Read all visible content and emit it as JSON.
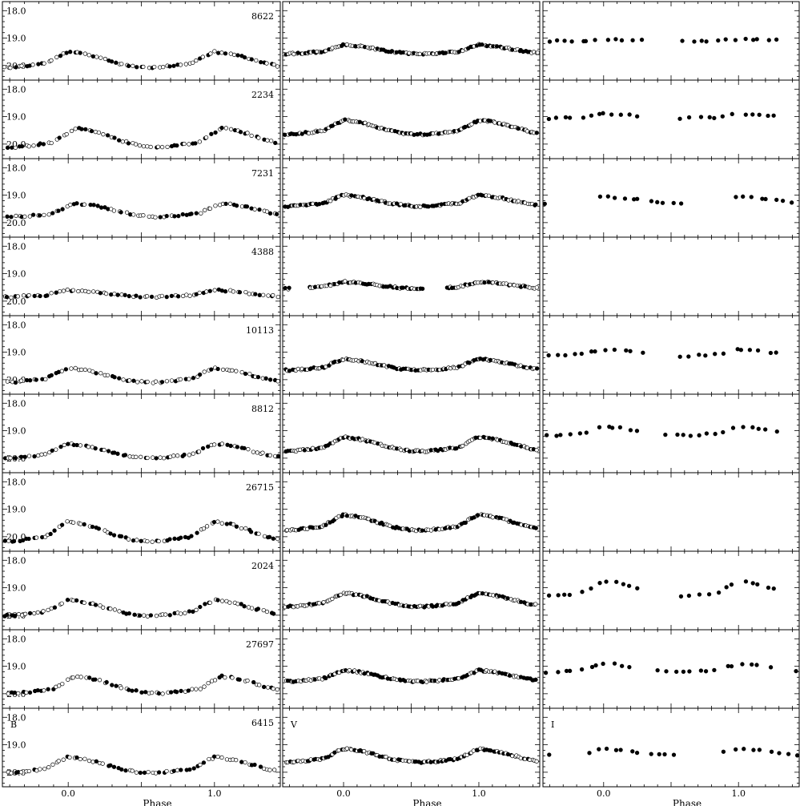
{
  "chart_data": {
    "type": "scatter",
    "layout": "grid",
    "rows": [
      "8622",
      "2234",
      "7231",
      "4388",
      "10113",
      "8812",
      "26715",
      "2024",
      "27697",
      "6415"
    ],
    "columns": [
      "B",
      "V",
      "I"
    ],
    "xlabel": "Phase",
    "xlim": [
      -0.45,
      1.45
    ],
    "ylim": [
      20.5,
      17.7
    ],
    "yticks": [
      "18.0",
      "19.0",
      "20.0"
    ],
    "xticks": [
      "0.0",
      "1.0"
    ],
    "point_styles": {
      "filled": "#000000",
      "open_fill": "#ffffff",
      "stroke": "#000000"
    },
    "panels": [
      {
        "star": "8622",
        "B": {
          "mean": 19.85,
          "amp": 0.35,
          "phi": 0.0
        },
        "V": {
          "mean": 19.45,
          "amp": 0.2,
          "phi": 0.0
        },
        "I": {
          "mean": 19.08,
          "amp": 0.04,
          "gaps": [
            [
              0.3,
              0.55
            ]
          ]
        }
      },
      {
        "star": "2234",
        "B": {
          "mean": 19.85,
          "amp": 0.42,
          "phi": 0.05
        },
        "V": {
          "mean": 19.45,
          "amp": 0.32,
          "phi": 0.0
        },
        "I": {
          "mean": 19.0,
          "amp": 0.1,
          "gaps": [
            [
              0.3,
              0.55
            ]
          ]
        }
      },
      {
        "star": "7231",
        "B": {
          "mean": 19.6,
          "amp": 0.3,
          "phi": 0.05
        },
        "V": {
          "mean": 19.25,
          "amp": 0.25,
          "phi": 0.0
        },
        "I": {
          "mean": 19.2,
          "amp": 0.15,
          "gaps": [
            [
              -0.35,
              -0.15
            ],
            [
              0.6,
              0.9
            ]
          ]
        }
      },
      {
        "star": "4388",
        "B": {
          "mean": 19.75,
          "amp": 0.15,
          "phi": 0.0
        },
        "V": {
          "mean": 19.45,
          "amp": 0.15,
          "phi": 0.0,
          "gaps": [
            [
              0.6,
              0.75
            ]
          ]
        }
      },
      {
        "star": "10113",
        "B": {
          "mean": 19.9,
          "amp": 0.32,
          "phi": 0.0
        },
        "V": {
          "mean": 19.5,
          "amp": 0.25,
          "phi": 0.0
        },
        "I": {
          "mean": 19.05,
          "amp": 0.15,
          "gaps": [
            [
              0.3,
              0.55
            ]
          ]
        }
      },
      {
        "star": "8812",
        "B": {
          "mean": 19.8,
          "amp": 0.32,
          "phi": 0.0
        },
        "V": {
          "mean": 19.55,
          "amp": 0.32,
          "phi": 0.0
        },
        "I": {
          "mean": 19.05,
          "amp": 0.2,
          "gaps": [
            [
              0.3,
              0.45
            ]
          ]
        }
      },
      {
        "star": "26715",
        "B": {
          "mean": 19.9,
          "amp": 0.45,
          "phi": 0.0
        },
        "V": {
          "mean": 19.55,
          "amp": 0.35,
          "phi": 0.0
        }
      },
      {
        "star": "2024",
        "B": {
          "mean": 19.8,
          "amp": 0.35,
          "phi": 0.0
        },
        "V": {
          "mean": 19.5,
          "amp": 0.3,
          "phi": 0.0
        },
        "I": {
          "mean": 19.1,
          "amp": 0.35,
          "gaps": [
            [
              0.3,
              0.55
            ]
          ]
        }
      },
      {
        "star": "27697",
        "B": {
          "mean": 19.75,
          "amp": 0.38,
          "phi": 0.05
        },
        "V": {
          "mean": 19.4,
          "amp": 0.25,
          "phi": 0.0
        },
        "I": {
          "mean": 19.1,
          "amp": 0.2,
          "gaps": [
            [
              0.25,
              0.35
            ]
          ]
        }
      },
      {
        "star": "6415",
        "B": {
          "mean": 19.8,
          "amp": 0.35,
          "phi": 0.0
        },
        "V": {
          "mean": 19.45,
          "amp": 0.3,
          "phi": 0.0
        },
        "I": {
          "mean": 19.3,
          "amp": 0.15,
          "gaps": [
            [
              -0.35,
              -0.15
            ],
            [
              0.6,
              0.85
            ]
          ]
        }
      }
    ]
  }
}
